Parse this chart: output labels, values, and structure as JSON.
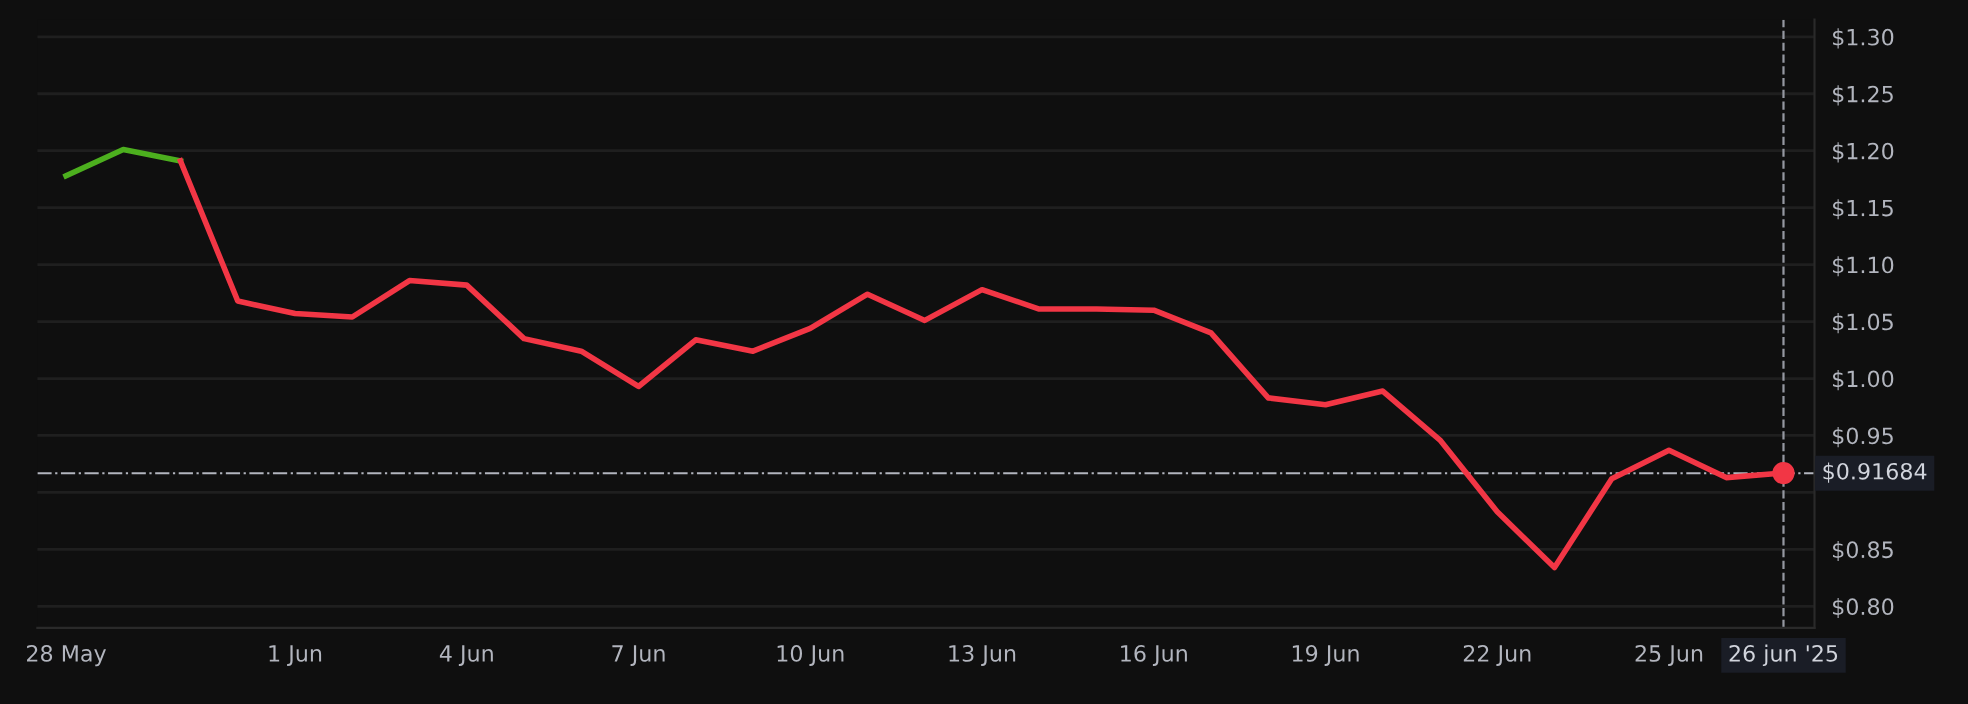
{
  "chart_data": {
    "type": "line",
    "series": [
      {
        "color": "#4caf1e",
        "x": [
          "2025-05-28",
          "2025-05-29",
          "2025-05-30"
        ],
        "values": [
          1.178,
          1.201,
          1.191
        ]
      },
      {
        "color": "#f23645",
        "x": [
          "2025-05-30",
          "2025-05-31",
          "2025-06-01",
          "2025-06-02",
          "2025-06-03",
          "2025-06-04",
          "2025-06-05",
          "2025-06-06",
          "2025-06-07",
          "2025-06-08",
          "2025-06-09",
          "2025-06-10",
          "2025-06-11",
          "2025-06-12",
          "2025-06-13",
          "2025-06-14",
          "2025-06-15",
          "2025-06-16",
          "2025-06-17",
          "2025-06-18",
          "2025-06-19",
          "2025-06-20",
          "2025-06-21",
          "2025-06-22",
          "2025-06-23",
          "2025-06-24",
          "2025-06-25",
          "2025-06-26",
          "2025-06-27"
        ],
        "values": [
          1.191,
          1.068,
          1.057,
          1.054,
          1.086,
          1.082,
          1.035,
          1.024,
          0.993,
          1.034,
          1.024,
          1.044,
          1.074,
          1.051,
          1.078,
          1.061,
          1.061,
          1.06,
          1.04,
          0.983,
          0.977,
          0.989,
          0.946,
          0.883,
          0.834,
          0.912,
          0.937,
          0.913,
          0.917
        ]
      },
      {
        "type": "scatter",
        "color": "#f23645",
        "marker": "circle",
        "x": [
          "2025-06-27"
        ],
        "values": [
          0.917
        ]
      }
    ],
    "xlim": [
      "2025-05-27T12:00",
      "2025-06-27T13:00"
    ],
    "xticks": [
      {
        "value": "2025-05-28",
        "label": "28 May"
      },
      {
        "value": "2025-06-01",
        "label": "1 Jun"
      },
      {
        "value": "2025-06-04",
        "label": "4 Jun"
      },
      {
        "value": "2025-06-07",
        "label": "7 Jun"
      },
      {
        "value": "2025-06-10",
        "label": "10 Jun"
      },
      {
        "value": "2025-06-13",
        "label": "13 Jun"
      },
      {
        "value": "2025-06-16",
        "label": "16 Jun"
      },
      {
        "value": "2025-06-19",
        "label": "19 Jun"
      },
      {
        "value": "2025-06-22",
        "label": "22 Jun"
      },
      {
        "value": "2025-06-25",
        "label": "25 Jun"
      }
    ],
    "ylim": [
      0.781,
      1.315
    ],
    "yticks": [
      {
        "value": 0.8,
        "label": "$0.80"
      },
      {
        "value": 0.85,
        "label": "$0.85"
      },
      {
        "value": 0.9,
        "label": null
      },
      {
        "value": 0.95,
        "label": "$0.95"
      },
      {
        "value": 1.0,
        "label": "$1.00"
      },
      {
        "value": 1.05,
        "label": "$1.05"
      },
      {
        "value": 1.1,
        "label": "$1.10"
      },
      {
        "value": 1.15,
        "label": "$1.15"
      },
      {
        "value": 1.2,
        "label": "$1.20"
      },
      {
        "value": 1.25,
        "label": "$1.25"
      },
      {
        "value": 1.3,
        "label": "$1.30"
      }
    ],
    "ref_lines": [
      {
        "axis": "y",
        "value": 0.91684,
        "label": "$0.91684",
        "color": "#b2b5be",
        "line_style": "dashdot"
      },
      {
        "axis": "x",
        "value": "2025-06-27",
        "label": "26 jun '25",
        "color": "#9598a1",
        "line_style": "dashed"
      }
    ],
    "grid": "y",
    "line_style": "solid",
    "marker": "none"
  }
}
